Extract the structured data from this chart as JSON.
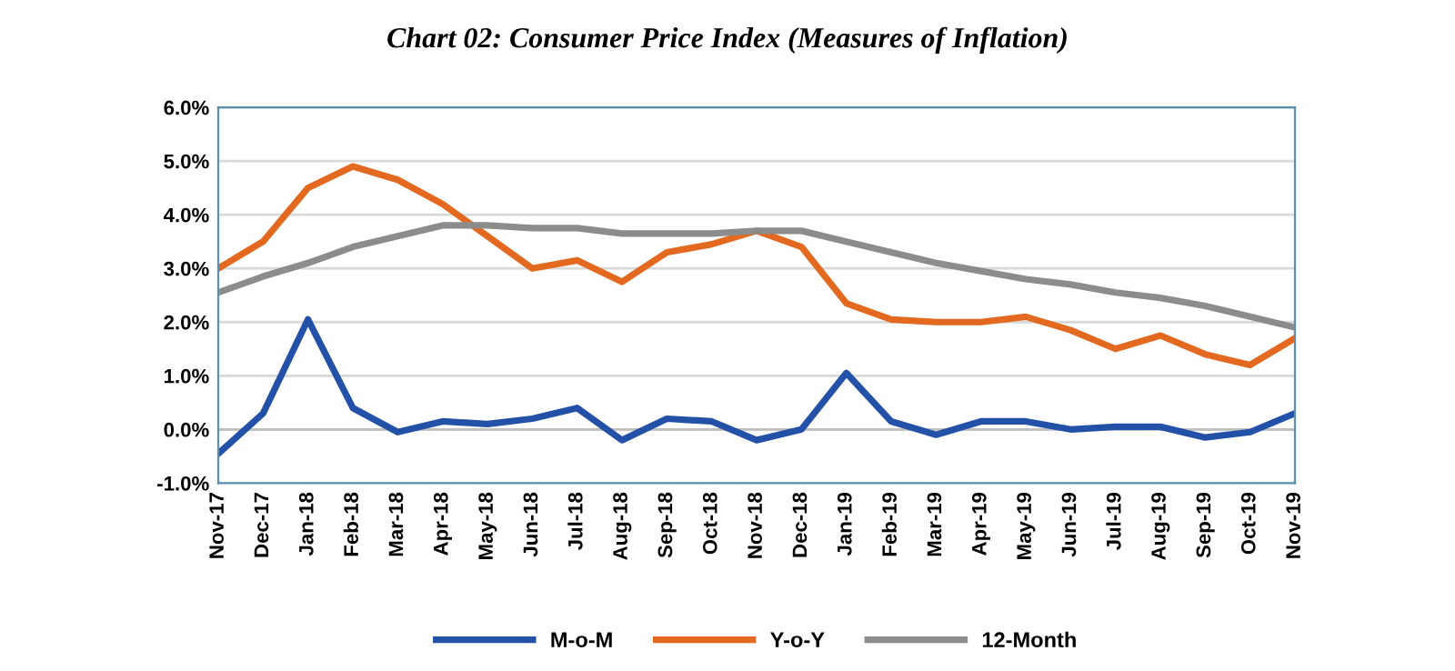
{
  "chart_data": {
    "type": "line",
    "title": "Chart 02: Consumer Price Index (Measures of Inflation)",
    "categories": [
      "Nov-17",
      "Dec-17",
      "Jan-18",
      "Feb-18",
      "Mar-18",
      "Apr-18",
      "May-18",
      "Jun-18",
      "Jul-18",
      "Aug-18",
      "Sep-18",
      "Oct-18",
      "Nov-18",
      "Dec-18",
      "Jan-19",
      "Feb-19",
      "Mar-19",
      "Apr-19",
      "May-19",
      "Jun-19",
      "Jul-19",
      "Aug-19",
      "Sep-19",
      "Oct-19",
      "Nov-19"
    ],
    "series": [
      {
        "name": "M-o-M",
        "color": "#2451a8",
        "values": [
          -0.45,
          0.3,
          2.05,
          0.4,
          -0.05,
          0.15,
          0.1,
          0.2,
          0.4,
          -0.2,
          0.2,
          0.15,
          -0.2,
          0.0,
          1.05,
          0.15,
          -0.1,
          0.15,
          0.15,
          0.0,
          0.05,
          0.05,
          -0.15,
          -0.05,
          0.3
        ]
      },
      {
        "name": "Y-o-Y",
        "color": "#e2691f",
        "values": [
          3.0,
          3.5,
          4.5,
          4.9,
          4.65,
          4.2,
          3.6,
          3.0,
          3.15,
          2.75,
          3.3,
          3.45,
          3.7,
          3.4,
          2.35,
          2.05,
          2.0,
          2.0,
          2.1,
          1.85,
          1.5,
          1.75,
          1.4,
          1.2,
          1.7
        ]
      },
      {
        "name": "12-Month",
        "color": "#8c8c8c",
        "values": [
          2.55,
          2.85,
          3.1,
          3.4,
          3.6,
          3.8,
          3.8,
          3.75,
          3.75,
          3.65,
          3.65,
          3.65,
          3.7,
          3.7,
          3.5,
          3.3,
          3.1,
          2.95,
          2.8,
          2.7,
          2.55,
          2.45,
          2.3,
          2.1,
          1.9
        ]
      }
    ],
    "ylim": [
      -1.0,
      6.0
    ],
    "yticks": [
      {
        "value": -1.0,
        "label": "-1.0%"
      },
      {
        "value": 0.0,
        "label": "0.0%"
      },
      {
        "value": 1.0,
        "label": "1.0%"
      },
      {
        "value": 2.0,
        "label": "2.0%"
      },
      {
        "value": 3.0,
        "label": "3.0%"
      },
      {
        "value": 4.0,
        "label": "4.0%"
      },
      {
        "value": 5.0,
        "label": "5.0%"
      },
      {
        "value": 6.0,
        "label": "6.0%"
      }
    ],
    "grid": "y",
    "legend": "bottom",
    "marker": "none",
    "line_style": "solid"
  }
}
